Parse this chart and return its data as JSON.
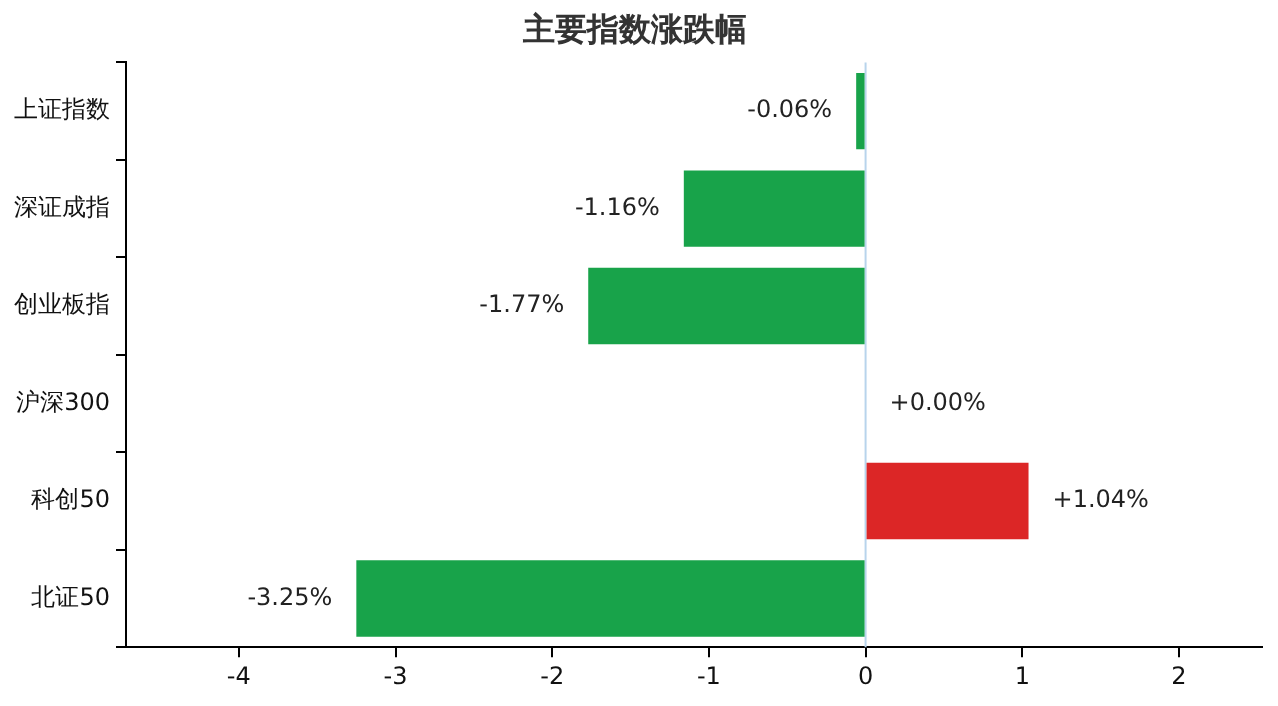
{
  "chart_data": {
    "type": "bar",
    "orientation": "horizontal",
    "title": "主要指数涨跌幅",
    "categories": [
      "上证指数",
      "深证成指",
      "创业板指",
      "沪深300",
      "科创50",
      "北证50"
    ],
    "values": [
      -0.06,
      -1.16,
      -1.77,
      0.0,
      1.04,
      -3.25
    ],
    "colors": [
      "#18a34a",
      "#18a34a",
      "#18a34a",
      "#dc2626",
      "#dc2626",
      "#18a34a"
    ],
    "value_labels": [
      "-0.06%",
      "-1.16%",
      "-1.77%",
      "+0.00%",
      "+1.04%",
      "-3.25%"
    ],
    "xlim": [
      -4.72,
      2.53
    ],
    "xticks": [
      -4,
      -3,
      -2,
      -1,
      0,
      1,
      2
    ],
    "ref_lines": [
      {
        "axis": "x",
        "value": 0,
        "color": "#b8d4ec"
      }
    ],
    "grid": false,
    "legend": false
  }
}
